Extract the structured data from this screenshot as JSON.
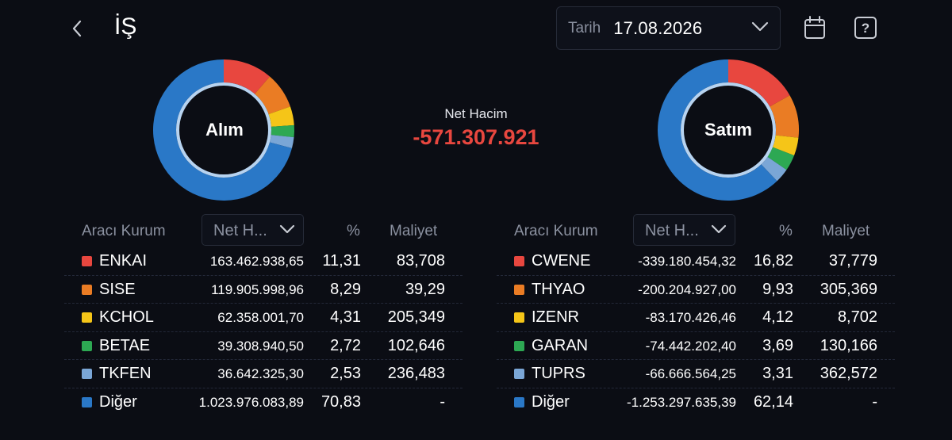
{
  "header": {
    "title": "İŞ"
  },
  "date_filter": {
    "label": "Tarih",
    "value": "17.08.2026"
  },
  "net_volume": {
    "label": "Net Hacim",
    "value": "-571.307.921",
    "color": "#e8473f"
  },
  "colors": {
    "ENKAI": "#e8473f",
    "SISE": "#ea7c24",
    "KCHOL": "#f5c518",
    "BETAE": "#2da853",
    "TKFEN": "#7aa6d6",
    "Diğer": "#2a78c7",
    "inner_ring": "#b7d3f0"
  },
  "buy": {
    "label": "Alım",
    "headers": {
      "broker": "Aracı Kurum",
      "sort": "Net H...",
      "pct": "%",
      "cost": "Maliyet"
    },
    "rows": [
      {
        "symbol": "ENKAI",
        "volume": "163.462.938,65",
        "pct": "11,31",
        "cost": "83,708",
        "color": "#e8473f",
        "share": 11.31
      },
      {
        "symbol": "SISE",
        "volume": "119.905.998,96",
        "pct": "8,29",
        "cost": "39,29",
        "color": "#ea7c24",
        "share": 8.29
      },
      {
        "symbol": "KCHOL",
        "volume": "62.358.001,70",
        "pct": "4,31",
        "cost": "205,349",
        "color": "#f5c518",
        "share": 4.31
      },
      {
        "symbol": "BETAE",
        "volume": "39.308.940,50",
        "pct": "2,72",
        "cost": "102,646",
        "color": "#2da853",
        "share": 2.72
      },
      {
        "symbol": "TKFEN",
        "volume": "36.642.325,30",
        "pct": "2,53",
        "cost": "236,483",
        "color": "#7aa6d6",
        "share": 2.53
      },
      {
        "symbol": "Diğer",
        "volume": "1.023.976.083,89",
        "pct": "70,83",
        "cost": "-",
        "color": "#2a78c7",
        "share": 70.83
      }
    ]
  },
  "sell": {
    "label": "Satım",
    "headers": {
      "broker": "Aracı Kurum",
      "sort": "Net H...",
      "pct": "%",
      "cost": "Maliyet"
    },
    "rows": [
      {
        "symbol": "CWENE",
        "volume": "-339.180.454,32",
        "pct": "16,82",
        "cost": "37,779",
        "color": "#e8473f",
        "share": 16.82
      },
      {
        "symbol": "THYAO",
        "volume": "-200.204.927,00",
        "pct": "9,93",
        "cost": "305,369",
        "color": "#ea7c24",
        "share": 9.93
      },
      {
        "symbol": "IZENR",
        "volume": "-83.170.426,46",
        "pct": "4,12",
        "cost": "8,702",
        "color": "#f5c518",
        "share": 4.12
      },
      {
        "symbol": "GARAN",
        "volume": "-74.442.202,40",
        "pct": "3,69",
        "cost": "130,166",
        "color": "#2da853",
        "share": 3.69
      },
      {
        "symbol": "TUPRS",
        "volume": "-66.666.564,25",
        "pct": "3,31",
        "cost": "362,572",
        "color": "#7aa6d6",
        "share": 3.31
      },
      {
        "symbol": "Diğer",
        "volume": "-1.253.297.635,39",
        "pct": "62,14",
        "cost": "-",
        "color": "#2a78c7",
        "share": 62.14
      }
    ]
  },
  "icons": [
    "back-chevron-icon",
    "chevron-down-icon",
    "calendar-icon",
    "help-icon"
  ]
}
